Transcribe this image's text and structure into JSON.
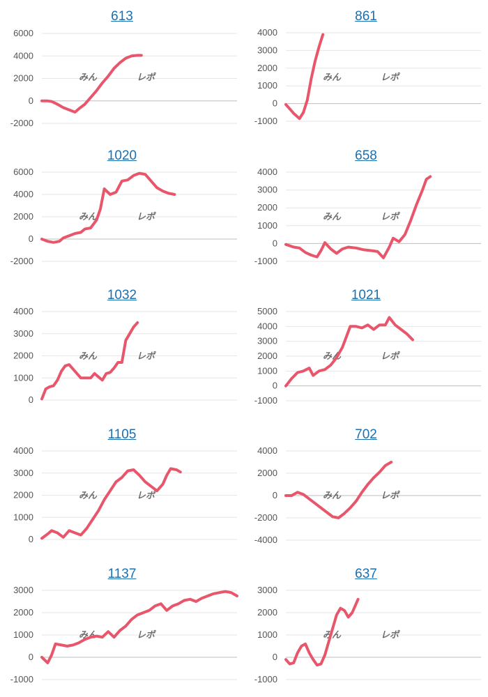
{
  "style": {
    "line_color": "#e8566c",
    "title_color": "#1a6fb0",
    "grid_color": "#e6e6e6",
    "zero_line_color": "#bdbdbd",
    "watermark_pink": "#e7a6ad",
    "watermark_gray": "#b9b9b9"
  },
  "watermark": {
    "left": "みん",
    "right": "レポ"
  },
  "chart_data": [
    {
      "type": "line",
      "title": "613",
      "yticks": [
        6000,
        4000,
        2000,
        0,
        -2000
      ],
      "ylim": [
        -2000,
        6000
      ],
      "x_max": 100,
      "values": [
        [
          0,
          0
        ],
        [
          3,
          0
        ],
        [
          5,
          -50
        ],
        [
          8,
          -300
        ],
        [
          11,
          -600
        ],
        [
          14,
          -800
        ],
        [
          17,
          -1000
        ],
        [
          19,
          -700
        ],
        [
          22,
          -300
        ],
        [
          25,
          300
        ],
        [
          28,
          900
        ],
        [
          31,
          1600
        ],
        [
          34,
          2200
        ],
        [
          37,
          2900
        ],
        [
          40,
          3400
        ],
        [
          43,
          3800
        ],
        [
          46,
          4000
        ],
        [
          49,
          4050
        ],
        [
          51,
          4050
        ]
      ]
    },
    {
      "type": "line",
      "title": "861",
      "yticks": [
        4000,
        3000,
        2000,
        1000,
        0,
        -1000
      ],
      "ylim": [
        -1000,
        4000
      ],
      "x_max": 100,
      "values": [
        [
          0,
          -50
        ],
        [
          2,
          -300
        ],
        [
          4,
          -550
        ],
        [
          6,
          -750
        ],
        [
          7,
          -850
        ],
        [
          9,
          -500
        ],
        [
          11,
          200
        ],
        [
          13,
          1400
        ],
        [
          15,
          2400
        ],
        [
          17,
          3200
        ],
        [
          19,
          3900
        ]
      ]
    },
    {
      "type": "line",
      "title": "1020",
      "yticks": [
        6000,
        4000,
        2000,
        0,
        -2000
      ],
      "ylim": [
        -2000,
        6000
      ],
      "x_max": 100,
      "values": [
        [
          0,
          0
        ],
        [
          3,
          -200
        ],
        [
          6,
          -300
        ],
        [
          9,
          -200
        ],
        [
          11,
          100
        ],
        [
          14,
          300
        ],
        [
          17,
          500
        ],
        [
          20,
          600
        ],
        [
          22,
          900
        ],
        [
          25,
          1000
        ],
        [
          28,
          1700
        ],
        [
          30,
          2700
        ],
        [
          32,
          4500
        ],
        [
          35,
          4000
        ],
        [
          38,
          4200
        ],
        [
          41,
          5200
        ],
        [
          44,
          5300
        ],
        [
          47,
          5700
        ],
        [
          50,
          5900
        ],
        [
          53,
          5800
        ],
        [
          56,
          5200
        ],
        [
          59,
          4600
        ],
        [
          62,
          4300
        ],
        [
          65,
          4100
        ],
        [
          68,
          4000
        ]
      ]
    },
    {
      "type": "line",
      "title": "658",
      "yticks": [
        4000,
        3000,
        2000,
        1000,
        0,
        -1000
      ],
      "ylim": [
        -1000,
        4000
      ],
      "x_max": 100,
      "values": [
        [
          0,
          -50
        ],
        [
          4,
          -200
        ],
        [
          7,
          -250
        ],
        [
          10,
          -500
        ],
        [
          13,
          -650
        ],
        [
          16,
          -750
        ],
        [
          18,
          -400
        ],
        [
          20,
          50
        ],
        [
          23,
          -300
        ],
        [
          26,
          -550
        ],
        [
          29,
          -300
        ],
        [
          32,
          -200
        ],
        [
          36,
          -250
        ],
        [
          40,
          -350
        ],
        [
          44,
          -400
        ],
        [
          47,
          -450
        ],
        [
          50,
          -800
        ],
        [
          53,
          -200
        ],
        [
          55,
          300
        ],
        [
          58,
          100
        ],
        [
          61,
          500
        ],
        [
          64,
          1300
        ],
        [
          67,
          2200
        ],
        [
          70,
          3000
        ],
        [
          72,
          3600
        ],
        [
          74,
          3750
        ]
      ]
    },
    {
      "type": "line",
      "title": "1032",
      "yticks": [
        4000,
        3000,
        2000,
        1000,
        0
      ],
      "ylim": [
        0,
        4000
      ],
      "x_max": 100,
      "values": [
        [
          0,
          50
        ],
        [
          2,
          500
        ],
        [
          4,
          600
        ],
        [
          6,
          650
        ],
        [
          8,
          900
        ],
        [
          10,
          1300
        ],
        [
          12,
          1550
        ],
        [
          14,
          1600
        ],
        [
          16,
          1400
        ],
        [
          18,
          1200
        ],
        [
          20,
          1000
        ],
        [
          22,
          1000
        ],
        [
          25,
          1000
        ],
        [
          27,
          1200
        ],
        [
          29,
          1050
        ],
        [
          31,
          900
        ],
        [
          33,
          1200
        ],
        [
          35,
          1250
        ],
        [
          37,
          1450
        ],
        [
          39,
          1700
        ],
        [
          41,
          1700
        ],
        [
          43,
          2700
        ],
        [
          45,
          3000
        ],
        [
          47,
          3300
        ],
        [
          49,
          3500
        ]
      ]
    },
    {
      "type": "line",
      "title": "1021",
      "yticks": [
        5000,
        4000,
        3000,
        2000,
        1000,
        0,
        -1000
      ],
      "ylim": [
        -1000,
        5000
      ],
      "x_max": 100,
      "values": [
        [
          0,
          0
        ],
        [
          3,
          500
        ],
        [
          6,
          900
        ],
        [
          9,
          1000
        ],
        [
          12,
          1200
        ],
        [
          14,
          700
        ],
        [
          17,
          1000
        ],
        [
          20,
          1100
        ],
        [
          23,
          1400
        ],
        [
          26,
          1900
        ],
        [
          29,
          2600
        ],
        [
          31,
          3300
        ],
        [
          33,
          4000
        ],
        [
          36,
          4000
        ],
        [
          39,
          3900
        ],
        [
          42,
          4100
        ],
        [
          45,
          3800
        ],
        [
          48,
          4100
        ],
        [
          51,
          4100
        ],
        [
          53,
          4600
        ],
        [
          56,
          4100
        ],
        [
          59,
          3800
        ],
        [
          62,
          3500
        ],
        [
          65,
          3100
        ]
      ]
    },
    {
      "type": "line",
      "title": "1105",
      "yticks": [
        4000,
        3000,
        2000,
        1000,
        0
      ],
      "ylim": [
        0,
        4000
      ],
      "x_max": 100,
      "values": [
        [
          0,
          50
        ],
        [
          3,
          250
        ],
        [
          5,
          400
        ],
        [
          8,
          300
        ],
        [
          11,
          100
        ],
        [
          14,
          400
        ],
        [
          17,
          300
        ],
        [
          20,
          200
        ],
        [
          23,
          500
        ],
        [
          26,
          900
        ],
        [
          29,
          1300
        ],
        [
          32,
          1800
        ],
        [
          35,
          2200
        ],
        [
          38,
          2600
        ],
        [
          41,
          2800
        ],
        [
          44,
          3100
        ],
        [
          47,
          3150
        ],
        [
          50,
          2900
        ],
        [
          53,
          2600
        ],
        [
          56,
          2400
        ],
        [
          59,
          2200
        ],
        [
          62,
          2500
        ],
        [
          64,
          2900
        ],
        [
          66,
          3200
        ],
        [
          69,
          3150
        ],
        [
          71,
          3050
        ]
      ]
    },
    {
      "type": "line",
      "title": "702",
      "yticks": [
        4000,
        2000,
        0,
        -2000,
        -4000
      ],
      "ylim": [
        -4000,
        4000
      ],
      "x_max": 100,
      "values": [
        [
          0,
          0
        ],
        [
          3,
          0
        ],
        [
          6,
          300
        ],
        [
          9,
          100
        ],
        [
          12,
          -300
        ],
        [
          15,
          -700
        ],
        [
          18,
          -1100
        ],
        [
          21,
          -1500
        ],
        [
          24,
          -1900
        ],
        [
          27,
          -2000
        ],
        [
          30,
          -1600
        ],
        [
          33,
          -1100
        ],
        [
          36,
          -500
        ],
        [
          39,
          300
        ],
        [
          42,
          1000
        ],
        [
          45,
          1600
        ],
        [
          48,
          2100
        ],
        [
          51,
          2700
        ],
        [
          54,
          3000
        ]
      ]
    },
    {
      "type": "line",
      "title": "1137",
      "yticks": [
        3000,
        2000,
        1000,
        0,
        -1000
      ],
      "ylim": [
        -1000,
        3000
      ],
      "x_max": 100,
      "values": [
        [
          0,
          0
        ],
        [
          3,
          -250
        ],
        [
          5,
          100
        ],
        [
          7,
          600
        ],
        [
          10,
          550
        ],
        [
          13,
          500
        ],
        [
          16,
          550
        ],
        [
          19,
          650
        ],
        [
          22,
          800
        ],
        [
          25,
          900
        ],
        [
          28,
          950
        ],
        [
          31,
          900
        ],
        [
          34,
          1150
        ],
        [
          37,
          900
        ],
        [
          40,
          1200
        ],
        [
          43,
          1400
        ],
        [
          46,
          1700
        ],
        [
          49,
          1900
        ],
        [
          52,
          2000
        ],
        [
          55,
          2100
        ],
        [
          58,
          2300
        ],
        [
          61,
          2400
        ],
        [
          64,
          2100
        ],
        [
          67,
          2300
        ],
        [
          70,
          2400
        ],
        [
          73,
          2550
        ],
        [
          76,
          2600
        ],
        [
          79,
          2500
        ],
        [
          82,
          2650
        ],
        [
          85,
          2750
        ],
        [
          88,
          2850
        ],
        [
          91,
          2900
        ],
        [
          94,
          2950
        ],
        [
          97,
          2900
        ],
        [
          100,
          2750
        ]
      ]
    },
    {
      "type": "line",
      "title": "637",
      "yticks": [
        3000,
        2000,
        1000,
        0,
        -1000
      ],
      "ylim": [
        -1000,
        3000
      ],
      "x_max": 100,
      "values": [
        [
          0,
          -100
        ],
        [
          2,
          -300
        ],
        [
          4,
          -250
        ],
        [
          6,
          200
        ],
        [
          8,
          500
        ],
        [
          10,
          600
        ],
        [
          12,
          200
        ],
        [
          14,
          -100
        ],
        [
          16,
          -350
        ],
        [
          18,
          -300
        ],
        [
          20,
          100
        ],
        [
          22,
          700
        ],
        [
          24,
          1300
        ],
        [
          26,
          1900
        ],
        [
          28,
          2200
        ],
        [
          30,
          2100
        ],
        [
          32,
          1800
        ],
        [
          34,
          2000
        ],
        [
          36,
          2400
        ],
        [
          37,
          2600
        ]
      ]
    }
  ]
}
